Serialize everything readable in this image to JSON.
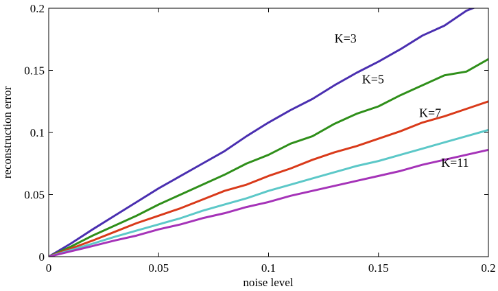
{
  "chart_data": {
    "type": "line",
    "title": "",
    "xlabel": "noise level",
    "ylabel": "reconstruction error",
    "xlim": [
      0,
      0.2
    ],
    "ylim": [
      0,
      0.2
    ],
    "xticks": [
      "0",
      "0.05",
      "0.1",
      "0.15",
      "0.2"
    ],
    "yticks": [
      "0",
      "0.05",
      "0.1",
      "0.15",
      "0.2"
    ],
    "grid": false,
    "x": [
      0,
      0.01,
      0.02,
      0.03,
      0.04,
      0.05,
      0.06,
      0.07,
      0.08,
      0.09,
      0.1,
      0.11,
      0.12,
      0.13,
      0.14,
      0.15,
      0.16,
      0.17,
      0.18,
      0.19,
      0.2
    ],
    "series": [
      {
        "name": "K=3",
        "color": "#4a2fb0",
        "values": [
          0,
          0.0105,
          0.022,
          0.033,
          0.044,
          0.055,
          0.065,
          0.075,
          0.085,
          0.097,
          0.108,
          0.118,
          0.127,
          0.138,
          0.148,
          0.157,
          0.167,
          0.178,
          0.186,
          0.198,
          0.205
        ]
      },
      {
        "name": "K=5",
        "color": "#2f8f1a",
        "values": [
          0,
          0.008,
          0.017,
          0.025,
          0.033,
          0.042,
          0.05,
          0.058,
          0.066,
          0.075,
          0.082,
          0.091,
          0.097,
          0.107,
          0.115,
          0.121,
          0.13,
          0.138,
          0.146,
          0.149,
          0.159
        ]
      },
      {
        "name": "K=7",
        "color": "#d93a1a",
        "values": [
          0,
          0.0065,
          0.013,
          0.02,
          0.027,
          0.033,
          0.039,
          0.046,
          0.053,
          0.058,
          0.065,
          0.071,
          0.078,
          0.084,
          0.089,
          0.095,
          0.101,
          0.108,
          0.113,
          0.119,
          0.125
        ]
      },
      {
        "name": "",
        "color": "#5cc8c8",
        "values": [
          0,
          0.0052,
          0.0105,
          0.016,
          0.021,
          0.026,
          0.031,
          0.037,
          0.042,
          0.047,
          0.053,
          0.058,
          0.063,
          0.068,
          0.073,
          0.077,
          0.082,
          0.087,
          0.092,
          0.097,
          0.102
        ]
      },
      {
        "name": "K=11",
        "color": "#a533b8",
        "values": [
          0,
          0.0043,
          0.0086,
          0.013,
          0.017,
          0.022,
          0.026,
          0.031,
          0.035,
          0.04,
          0.044,
          0.049,
          0.053,
          0.057,
          0.061,
          0.065,
          0.069,
          0.074,
          0.078,
          0.082,
          0.086
        ]
      }
    ],
    "annotations": [
      {
        "text": "K=3",
        "x": 0.13,
        "y": 0.1725,
        "series": 0
      },
      {
        "text": "K=5",
        "x": 0.1425,
        "y": 0.1395,
        "series": 1
      },
      {
        "text": "K=7",
        "x": 0.1685,
        "y": 0.1125,
        "series": 2
      },
      {
        "text": "K=11",
        "x": 0.1785,
        "y": 0.0725,
        "series": 4
      }
    ]
  }
}
